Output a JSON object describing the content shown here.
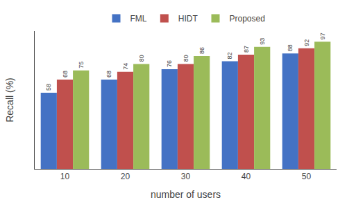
{
  "chart_data": {
    "type": "bar",
    "categories": [
      "10",
      "20",
      "30",
      "40",
      "50"
    ],
    "series": [
      {
        "name": "FML",
        "color": "#4472C4",
        "values": [
          58,
          68,
          76,
          82,
          88
        ]
      },
      {
        "name": "HIDT",
        "color": "#C0504D",
        "values": [
          68,
          74,
          80,
          87,
          92
        ]
      },
      {
        "name": "Proposed",
        "color": "#9BBB59",
        "values": [
          75,
          80,
          86,
          93,
          97
        ]
      }
    ],
    "xlabel": "number of users",
    "ylabel": "Recall (%)",
    "ylim": [
      0,
      105
    ],
    "yticks": [],
    "grid": false,
    "legend": "top",
    "data_labels": true,
    "tick_labels": "x"
  }
}
